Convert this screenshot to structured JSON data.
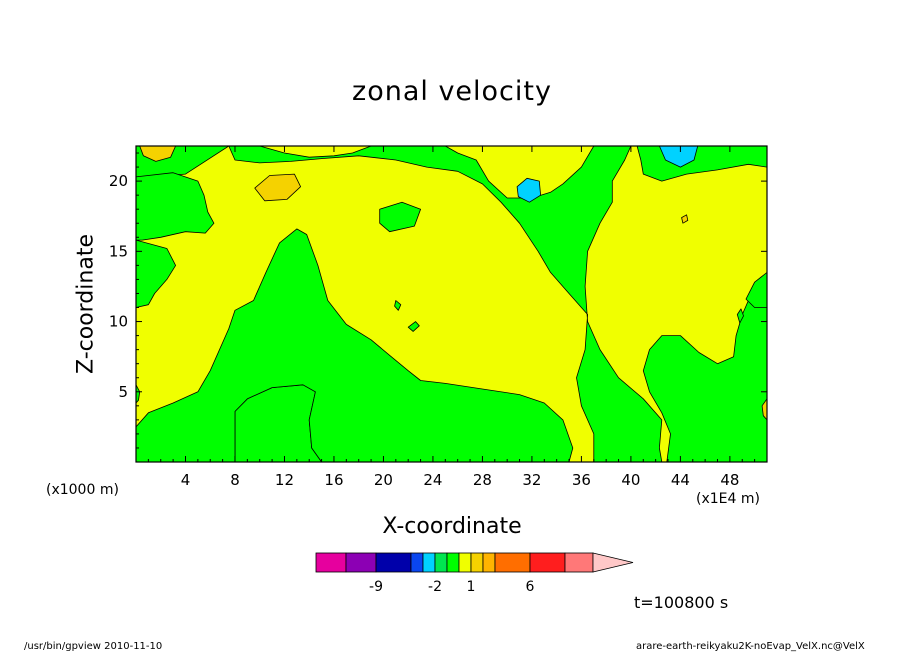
{
  "labels": {
    "footer_left": "/usr/bin/gpview   2010-11-10",
    "footer_right": "arare-earth-reikyaku2K-noEvap_VelX.nc@VelX"
  },
  "chart_data": {
    "type": "contour",
    "title": "zonal velocity",
    "xlabel": "X-coordinate",
    "ylabel": "Z-coordinate",
    "x_unit": "(x1E4 m)",
    "y_unit": "(x1000 m)",
    "time_label": "t=100800 s",
    "xlim": [
      0,
      51
    ],
    "ylim": [
      0,
      22.5
    ],
    "x_ticks": [
      4,
      8,
      12,
      16,
      20,
      24,
      28,
      32,
      36,
      40,
      44,
      48
    ],
    "y_ticks": [
      5,
      10,
      15,
      20
    ],
    "colorbar": {
      "colors": [
        "#e6009e",
        "#8c00b4",
        "#0000aa",
        "#0a46f0",
        "#00d2ff",
        "#00e650",
        "#00ff00",
        "#f0ff00",
        "#f5d200",
        "#ffb400",
        "#ff6e00",
        "#ff1e1e",
        "#ff7878"
      ],
      "extend_color": "#ffc8c8",
      "tick_labels": [
        "-9",
        "-2",
        "1",
        "6"
      ]
    },
    "regions": [
      {
        "level": "1",
        "color": "#f0ff00",
        "polygon": [
          [
            0,
            0
          ],
          [
            51,
            0
          ],
          [
            51,
            22.5
          ],
          [
            0,
            22.5
          ]
        ]
      },
      {
        "level": "0",
        "color": "#00ff00",
        "polygon": [
          [
            8,
            0
          ],
          [
            15,
            0
          ],
          [
            14.2,
            1
          ],
          [
            14,
            3
          ],
          [
            14.5,
            5
          ],
          [
            13.5,
            5.5
          ],
          [
            11,
            5.3
          ],
          [
            9,
            4.5
          ],
          [
            8,
            3.6
          ]
        ]
      },
      {
        "level": "0",
        "color": "#00ff00",
        "polygon": [
          [
            15,
            0
          ],
          [
            35,
            0
          ],
          [
            35.3,
            1
          ],
          [
            34.5,
            3
          ],
          [
            33,
            4.2
          ],
          [
            31,
            4.8
          ],
          [
            28,
            5.2
          ],
          [
            25,
            5.6
          ],
          [
            23,
            5.8
          ],
          [
            22,
            6.5
          ],
          [
            20.5,
            7.6
          ],
          [
            19,
            8.7
          ],
          [
            17,
            9.8
          ],
          [
            15.5,
            11.5
          ],
          [
            14.7,
            14
          ],
          [
            13.8,
            16.2
          ],
          [
            13,
            16.6
          ],
          [
            11.6,
            15.6
          ],
          [
            10.5,
            13.5
          ],
          [
            9.5,
            11.5
          ],
          [
            8,
            10.8
          ],
          [
            7.5,
            9.5
          ],
          [
            6,
            6.5
          ],
          [
            5,
            5
          ],
          [
            3,
            4.2
          ],
          [
            1,
            3.5
          ],
          [
            0,
            2.5
          ],
          [
            0,
            0
          ],
          [
            8,
            0
          ],
          [
            8,
            3.6
          ],
          [
            9,
            4.5
          ],
          [
            11,
            5.3
          ],
          [
            13.5,
            5.5
          ],
          [
            14.5,
            5
          ],
          [
            14,
            3
          ],
          [
            14.2,
            1
          ]
        ]
      },
      {
        "level": "0",
        "color": "#00ff00",
        "polygon": [
          [
            37,
            0
          ],
          [
            42.5,
            0
          ],
          [
            42.3,
            1
          ],
          [
            42.5,
            3
          ],
          [
            41,
            4.5
          ],
          [
            39,
            6
          ],
          [
            37.5,
            8
          ],
          [
            36.5,
            10
          ],
          [
            36.3,
            12.5
          ],
          [
            36.5,
            15
          ],
          [
            37.5,
            17
          ],
          [
            38.5,
            18.5
          ],
          [
            38.5,
            20
          ],
          [
            39.5,
            21.5
          ],
          [
            40,
            22.5
          ],
          [
            37,
            22.5
          ],
          [
            36,
            21
          ],
          [
            34.5,
            19.8
          ],
          [
            33.5,
            19.2
          ],
          [
            32,
            18.8
          ],
          [
            30,
            18.8
          ],
          [
            28.5,
            20
          ],
          [
            27.5,
            21.5
          ],
          [
            26,
            22
          ],
          [
            25,
            22.5
          ],
          [
            19,
            22.5
          ],
          [
            17.5,
            22
          ],
          [
            16,
            21.8
          ],
          [
            14,
            21.7
          ],
          [
            12,
            22
          ],
          [
            10,
            22.5
          ],
          [
            7.5,
            22.5
          ],
          [
            8,
            21.5
          ],
          [
            10,
            21.3
          ],
          [
            12.5,
            21.4
          ],
          [
            15,
            21.6
          ],
          [
            18,
            21.8
          ],
          [
            21,
            21.5
          ],
          [
            23.5,
            21
          ],
          [
            26,
            20.7
          ],
          [
            28,
            19.8
          ],
          [
            29.5,
            18.5
          ],
          [
            31,
            17
          ],
          [
            32.5,
            15
          ],
          [
            33.5,
            13.5
          ],
          [
            35,
            12
          ],
          [
            36.5,
            10.5
          ],
          [
            36.3,
            8
          ],
          [
            35.6,
            6
          ],
          [
            36,
            4
          ],
          [
            37,
            2
          ]
        ]
      },
      {
        "level": "0",
        "color": "#00ff00",
        "polygon": [
          [
            40.5,
            22.5
          ],
          [
            51,
            22.5
          ],
          [
            51,
            21
          ],
          [
            49.5,
            21.2
          ],
          [
            47,
            20.8
          ],
          [
            44.5,
            20.5
          ],
          [
            42.5,
            20
          ],
          [
            41,
            20.5
          ],
          [
            40.8,
            21.5
          ]
        ]
      },
      {
        "level": "0",
        "color": "#00ff00",
        "polygon": [
          [
            51,
            12.5
          ],
          [
            49.5,
            11.5
          ],
          [
            49,
            10.5
          ],
          [
            48.5,
            9
          ],
          [
            48.3,
            7.5
          ],
          [
            47,
            7
          ],
          [
            45.5,
            7.8
          ],
          [
            44,
            9
          ],
          [
            42.5,
            9
          ],
          [
            41.5,
            8
          ],
          [
            41,
            6.5
          ],
          [
            41.5,
            5
          ],
          [
            42.5,
            3.5
          ],
          [
            43.2,
            2
          ],
          [
            42.9,
            0
          ],
          [
            51,
            0
          ]
        ]
      },
      {
        "level": "0",
        "color": "#00ff00",
        "polygon": [
          [
            0,
            22.5
          ],
          [
            7.5,
            22.5
          ],
          [
            4,
            20.5
          ],
          [
            2.5,
            20.4
          ],
          [
            0,
            20.3
          ]
        ]
      },
      {
        "level": "0",
        "color": "#00ff00",
        "polygon": [
          [
            0,
            20.3
          ],
          [
            3,
            20.6
          ],
          [
            5,
            20
          ],
          [
            5.5,
            19
          ],
          [
            5.8,
            17.8
          ],
          [
            6.3,
            17
          ],
          [
            5.6,
            16.3
          ],
          [
            4,
            16.4
          ],
          [
            2,
            16
          ],
          [
            0.5,
            15.8
          ],
          [
            0,
            15.8
          ]
        ]
      },
      {
        "level": "0",
        "color": "#00ff00",
        "polygon": [
          [
            0,
            15.8
          ],
          [
            2.5,
            15.2
          ],
          [
            3.2,
            14
          ],
          [
            2.5,
            13
          ],
          [
            1.5,
            12
          ],
          [
            1,
            11.2
          ],
          [
            0,
            11
          ]
        ]
      },
      {
        "level": "0",
        "color": "#00ff00",
        "polygon": [
          [
            19.7,
            18
          ],
          [
            21.5,
            18.5
          ],
          [
            23,
            18
          ],
          [
            22.5,
            16.8
          ],
          [
            20.5,
            16.4
          ],
          [
            19.7,
            17
          ]
        ]
      },
      {
        "level": "0",
        "color": "#00ff00",
        "polygon": [
          [
            51,
            13.5
          ],
          [
            50,
            12.8
          ],
          [
            49.3,
            11.6
          ],
          [
            50,
            11
          ],
          [
            51,
            11
          ]
        ]
      },
      {
        "level": "0",
        "color": "#00ff00",
        "polygon": [
          [
            21,
            11.5
          ],
          [
            21.4,
            11.2
          ],
          [
            21.2,
            10.8
          ],
          [
            20.9,
            11.1
          ]
        ]
      },
      {
        "level": "0",
        "color": "#00ff00",
        "polygon": [
          [
            22,
            9.6
          ],
          [
            22.6,
            10
          ],
          [
            22.9,
            9.7
          ],
          [
            22.4,
            9.3
          ]
        ]
      },
      {
        "level": "0",
        "color": "#00ff00",
        "polygon": [
          [
            48.6,
            10.5
          ],
          [
            48.9,
            10.9
          ],
          [
            49.1,
            10.4
          ],
          [
            48.8,
            9.9
          ]
        ]
      },
      {
        "level": "0",
        "color": "#00ff00",
        "polygon": [
          [
            0,
            5.5
          ],
          [
            0.3,
            5
          ],
          [
            0.2,
            4.4
          ],
          [
            0,
            4.2
          ]
        ]
      },
      {
        "level": "2",
        "color": "#f5d200",
        "polygon": [
          [
            0.3,
            22.5
          ],
          [
            3.2,
            22.5
          ],
          [
            2.8,
            21.7
          ],
          [
            1.6,
            21.4
          ],
          [
            0.6,
            21.8
          ]
        ]
      },
      {
        "level": "2",
        "color": "#f5d200",
        "polygon": [
          [
            9.6,
            19.5
          ],
          [
            10.8,
            20.4
          ],
          [
            12.8,
            20.5
          ],
          [
            13.3,
            19.6
          ],
          [
            12.2,
            18.7
          ],
          [
            10.4,
            18.6
          ]
        ]
      },
      {
        "level": "2",
        "color": "#f5d200",
        "polygon": [
          [
            44.1,
            17.4
          ],
          [
            44.5,
            17.6
          ],
          [
            44.6,
            17.2
          ],
          [
            44.2,
            17
          ]
        ]
      },
      {
        "level": "2",
        "color": "#f5d200",
        "polygon": [
          [
            50.6,
            4
          ],
          [
            51,
            4.5
          ],
          [
            51,
            3
          ],
          [
            50.7,
            3.3
          ]
        ]
      },
      {
        "level": "-1",
        "color": "#00d2ff",
        "polygon": [
          [
            30.8,
            19.6
          ],
          [
            31.6,
            20.2
          ],
          [
            32.6,
            20
          ],
          [
            32.7,
            19
          ],
          [
            31.8,
            18.5
          ],
          [
            30.9,
            18.9
          ]
        ]
      },
      {
        "level": "-1",
        "color": "#00d2ff",
        "polygon": [
          [
            42.3,
            22.5
          ],
          [
            45.4,
            22.5
          ],
          [
            45.1,
            21.5
          ],
          [
            44,
            21
          ],
          [
            42.8,
            21.5
          ]
        ]
      }
    ]
  }
}
